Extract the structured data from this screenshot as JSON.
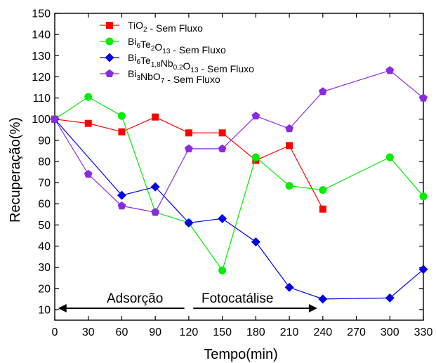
{
  "chart_data": {
    "type": "line",
    "title": "",
    "xlabel": "Tempo(min)",
    "ylabel": "Recuperação(%)",
    "xlim": [
      0,
      330
    ],
    "ylim": [
      5,
      150
    ],
    "xticks": [
      0,
      30,
      60,
      90,
      120,
      150,
      180,
      210,
      240,
      270,
      300,
      330
    ],
    "yticks": [
      10,
      20,
      30,
      40,
      50,
      60,
      70,
      80,
      90,
      100,
      110,
      120,
      130,
      140,
      150
    ],
    "grid": false,
    "legend_position": "top-center",
    "series": [
      {
        "name": "TiO2 - Sem Fluxo",
        "legend": {
          "pre": "TiO",
          "sub": "2",
          "post": " - Sem Fluxo"
        },
        "color": "#ff0000",
        "marker": "square",
        "x": [
          0,
          30,
          60,
          90,
          120,
          150,
          180,
          210,
          240
        ],
        "y": [
          100,
          98,
          94,
          101,
          93.5,
          93.5,
          80.5,
          87.5,
          57.5
        ]
      },
      {
        "name": "Bi6Te2O13 - Sem Fluxo",
        "legend": {
          "pre": "Bi",
          "sub": "6",
          "mid": "Te",
          "sub2": "2",
          "mid2": "O",
          "sub3": "13",
          "post": " - Sem Fluxo"
        },
        "color": "#00ee00",
        "marker": "circle",
        "x": [
          0,
          30,
          60,
          90,
          120,
          150,
          180,
          210,
          240,
          300,
          330
        ],
        "y": [
          100,
          110.5,
          101.5,
          56,
          51,
          28.5,
          82,
          68.5,
          66.5,
          82,
          63.5
        ]
      },
      {
        "name": "Bi6Te1,8Nb0,2O13 - Sem Fluxo",
        "legend": {
          "pre": "Bi",
          "sub": "6",
          "mid": "Te",
          "sub2": "1,8",
          "mid2": "Nb",
          "sub3": "0,2",
          "mid3": "O",
          "sub4": "13",
          "post": " - Sem Fluxo"
        },
        "color": "#0000ee",
        "marker": "diamond",
        "x": [
          0,
          60,
          90,
          120,
          150,
          180,
          210,
          240,
          300,
          330
        ],
        "y": [
          100,
          64,
          68,
          51,
          53,
          42,
          20.5,
          15,
          15.5,
          29
        ]
      },
      {
        "name": "Bi3NbO7 - Sem Fluxo",
        "legend": {
          "pre": "Bi",
          "sub": "3",
          "mid": "NbO",
          "sub2": "7",
          "post": " - Sem Fluxo"
        },
        "color": "#8a2be2",
        "marker": "pentagon",
        "x": [
          0,
          30,
          60,
          90,
          120,
          150,
          180,
          210,
          240,
          300,
          330
        ],
        "y": [
          100,
          74,
          59,
          56,
          86,
          86,
          101.5,
          95.5,
          113,
          123,
          110
        ]
      }
    ],
    "annotations": {
      "left": "Adsorção",
      "right": "Fotocatálise"
    }
  }
}
